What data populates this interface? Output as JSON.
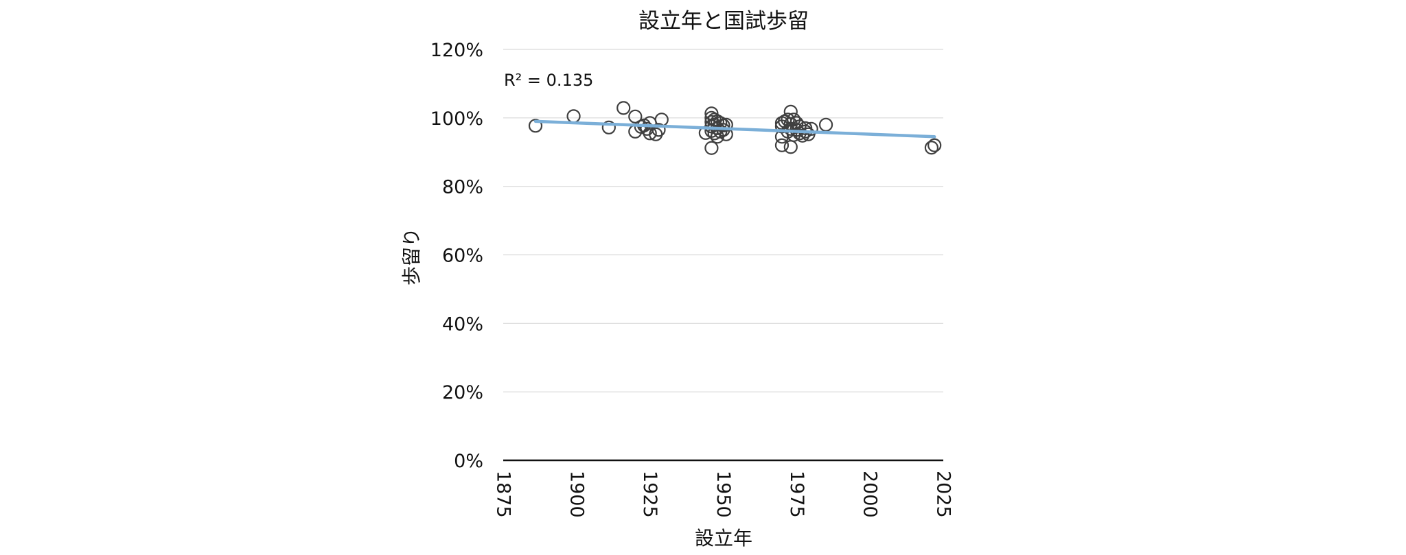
{
  "chart_data": {
    "type": "scatter",
    "title": "設立年と国試歩留",
    "xlabel": "設立年",
    "ylabel": "歩留り",
    "xlim": [
      1875,
      2025
    ],
    "ylim": [
      0,
      1.2
    ],
    "x_ticks": [
      1875,
      1900,
      1925,
      1950,
      1975,
      2000,
      2025
    ],
    "x_tick_labels": [
      "1875",
      "1900",
      "1925",
      "1950",
      "1975",
      "2000",
      "2025"
    ],
    "y_ticks": [
      0,
      0.2,
      0.4,
      0.6,
      0.8,
      1.0,
      1.2
    ],
    "y_tick_labels": [
      "0%",
      "20%",
      "40%",
      "60%",
      "80%",
      "100%",
      "120%"
    ],
    "grid": true,
    "annotation": "R² = 0.135",
    "marker_color": "#404040",
    "trendline_color": "#7bafd8",
    "trendline": {
      "x": [
        1886,
        2022
      ],
      "y": [
        0.99,
        0.945
      ]
    },
    "points": [
      {
        "x": 1886,
        "y": 0.977
      },
      {
        "x": 1899,
        "y": 1.005
      },
      {
        "x": 1911,
        "y": 0.972
      },
      {
        "x": 1916,
        "y": 1.029
      },
      {
        "x": 1920,
        "y": 1.004
      },
      {
        "x": 1920,
        "y": 0.96
      },
      {
        "x": 1922,
        "y": 0.974
      },
      {
        "x": 1923,
        "y": 0.978
      },
      {
        "x": 1924,
        "y": 0.968
      },
      {
        "x": 1925,
        "y": 0.985
      },
      {
        "x": 1925,
        "y": 0.955
      },
      {
        "x": 1927,
        "y": 0.952
      },
      {
        "x": 1928,
        "y": 0.965
      },
      {
        "x": 1929,
        "y": 0.995
      },
      {
        "x": 1944,
        "y": 0.956
      },
      {
        "x": 1946,
        "y": 1.013
      },
      {
        "x": 1946,
        "y": 1.0
      },
      {
        "x": 1946,
        "y": 0.988
      },
      {
        "x": 1946,
        "y": 0.975
      },
      {
        "x": 1946,
        "y": 0.962
      },
      {
        "x": 1946,
        "y": 0.912
      },
      {
        "x": 1947,
        "y": 0.995
      },
      {
        "x": 1947,
        "y": 0.98
      },
      {
        "x": 1947,
        "y": 0.955
      },
      {
        "x": 1948,
        "y": 0.99
      },
      {
        "x": 1948,
        "y": 0.97
      },
      {
        "x": 1948,
        "y": 0.945
      },
      {
        "x": 1949,
        "y": 0.985
      },
      {
        "x": 1949,
        "y": 0.96
      },
      {
        "x": 1950,
        "y": 0.978
      },
      {
        "x": 1950,
        "y": 0.965
      },
      {
        "x": 1951,
        "y": 0.98
      },
      {
        "x": 1951,
        "y": 0.952
      },
      {
        "x": 1970,
        "y": 0.985
      },
      {
        "x": 1970,
        "y": 0.975
      },
      {
        "x": 1970,
        "y": 0.945
      },
      {
        "x": 1970,
        "y": 0.92
      },
      {
        "x": 1971,
        "y": 0.99
      },
      {
        "x": 1972,
        "y": 0.96
      },
      {
        "x": 1972,
        "y": 0.995
      },
      {
        "x": 1973,
        "y": 1.018
      },
      {
        "x": 1973,
        "y": 0.982
      },
      {
        "x": 1973,
        "y": 0.968
      },
      {
        "x": 1973,
        "y": 0.915
      },
      {
        "x": 1974,
        "y": 0.995
      },
      {
        "x": 1974,
        "y": 0.95
      },
      {
        "x": 1975,
        "y": 0.985
      },
      {
        "x": 1975,
        "y": 0.965
      },
      {
        "x": 1976,
        "y": 0.975
      },
      {
        "x": 1976,
        "y": 0.955
      },
      {
        "x": 1977,
        "y": 0.948
      },
      {
        "x": 1978,
        "y": 0.97
      },
      {
        "x": 1978,
        "y": 0.96
      },
      {
        "x": 1979,
        "y": 0.952
      },
      {
        "x": 1980,
        "y": 0.968
      },
      {
        "x": 1985,
        "y": 0.98
      },
      {
        "x": 2021,
        "y": 0.913
      },
      {
        "x": 2022,
        "y": 0.92
      }
    ]
  }
}
